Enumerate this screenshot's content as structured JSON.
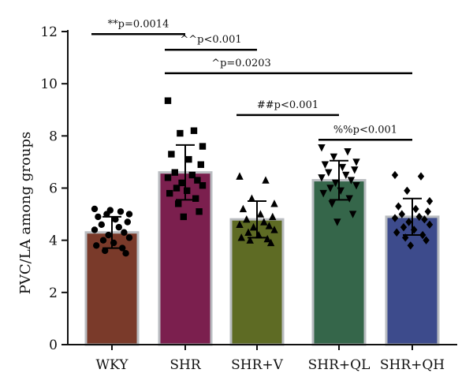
{
  "chart_data": {
    "type": "bar",
    "ylabel": "PVC/LA among groups",
    "xlabel": "",
    "title": "",
    "ylim": [
      0,
      12
    ],
    "yticks": [
      0,
      2,
      4,
      6,
      8,
      10,
      12
    ],
    "grid": false,
    "legend": "none",
    "categories": [
      "WKY",
      "SHR",
      "SHR+V",
      "SHR+QL",
      "SHR+QH"
    ],
    "values": [
      4.3,
      6.6,
      4.8,
      6.3,
      4.9
    ],
    "errors": [
      0.6,
      1.05,
      0.7,
      0.75,
      0.7
    ],
    "colors": [
      "#7a3a2a",
      "#7b1f4e",
      "#5e6b24",
      "#35664a",
      "#3d4b8c"
    ],
    "markers": [
      "circle",
      "square",
      "triangle",
      "triangle-down",
      "diamond"
    ],
    "points": [
      [
        5.2,
        5.1,
        5.0,
        5.0,
        4.9,
        4.8,
        4.7,
        4.6,
        4.5,
        4.4,
        4.3,
        4.2,
        4.1,
        4.0,
        3.9,
        3.8,
        3.7,
        3.6,
        3.5,
        5.15
      ],
      [
        9.35,
        8.2,
        8.1,
        7.6,
        7.3,
        7.1,
        6.9,
        6.6,
        6.5,
        6.4,
        6.3,
        6.2,
        6.1,
        6.0,
        5.9,
        5.8,
        5.6,
        5.4,
        5.1,
        4.9
      ],
      [
        6.45,
        6.3,
        5.6,
        5.4,
        5.2,
        5.0,
        4.9,
        4.8,
        4.7,
        4.6,
        4.55,
        4.5,
        4.4,
        4.3,
        4.2,
        4.1,
        4.05,
        4.0,
        3.9
      ],
      [
        7.55,
        7.4,
        7.2,
        7.0,
        6.9,
        6.8,
        6.7,
        6.6,
        6.5,
        6.4,
        6.3,
        6.2,
        6.1,
        6.0,
        5.9,
        5.8,
        5.6,
        5.4,
        5.0,
        4.7
      ],
      [
        6.5,
        6.45,
        5.9,
        5.5,
        5.3,
        5.2,
        5.1,
        5.0,
        4.9,
        4.85,
        4.8,
        4.7,
        4.6,
        4.5,
        4.4,
        4.3,
        4.2,
        4.1,
        4.0,
        3.8
      ]
    ],
    "annotations": [
      {
        "text": "**p=0.0014",
        "from": 0,
        "to": 1,
        "y": 11.9
      },
      {
        "text": "^^p<0.001",
        "from": 1,
        "to": 2,
        "y": 11.3
      },
      {
        "text": "^p=0.0203",
        "from": 1,
        "to": 4,
        "y": 10.4
      },
      {
        "text": "##p<0.001",
        "from": 2,
        "to": 3,
        "y": 8.8
      },
      {
        "text": "%%p<0.001",
        "from": 3,
        "to": 4,
        "y": 7.85
      }
    ]
  }
}
